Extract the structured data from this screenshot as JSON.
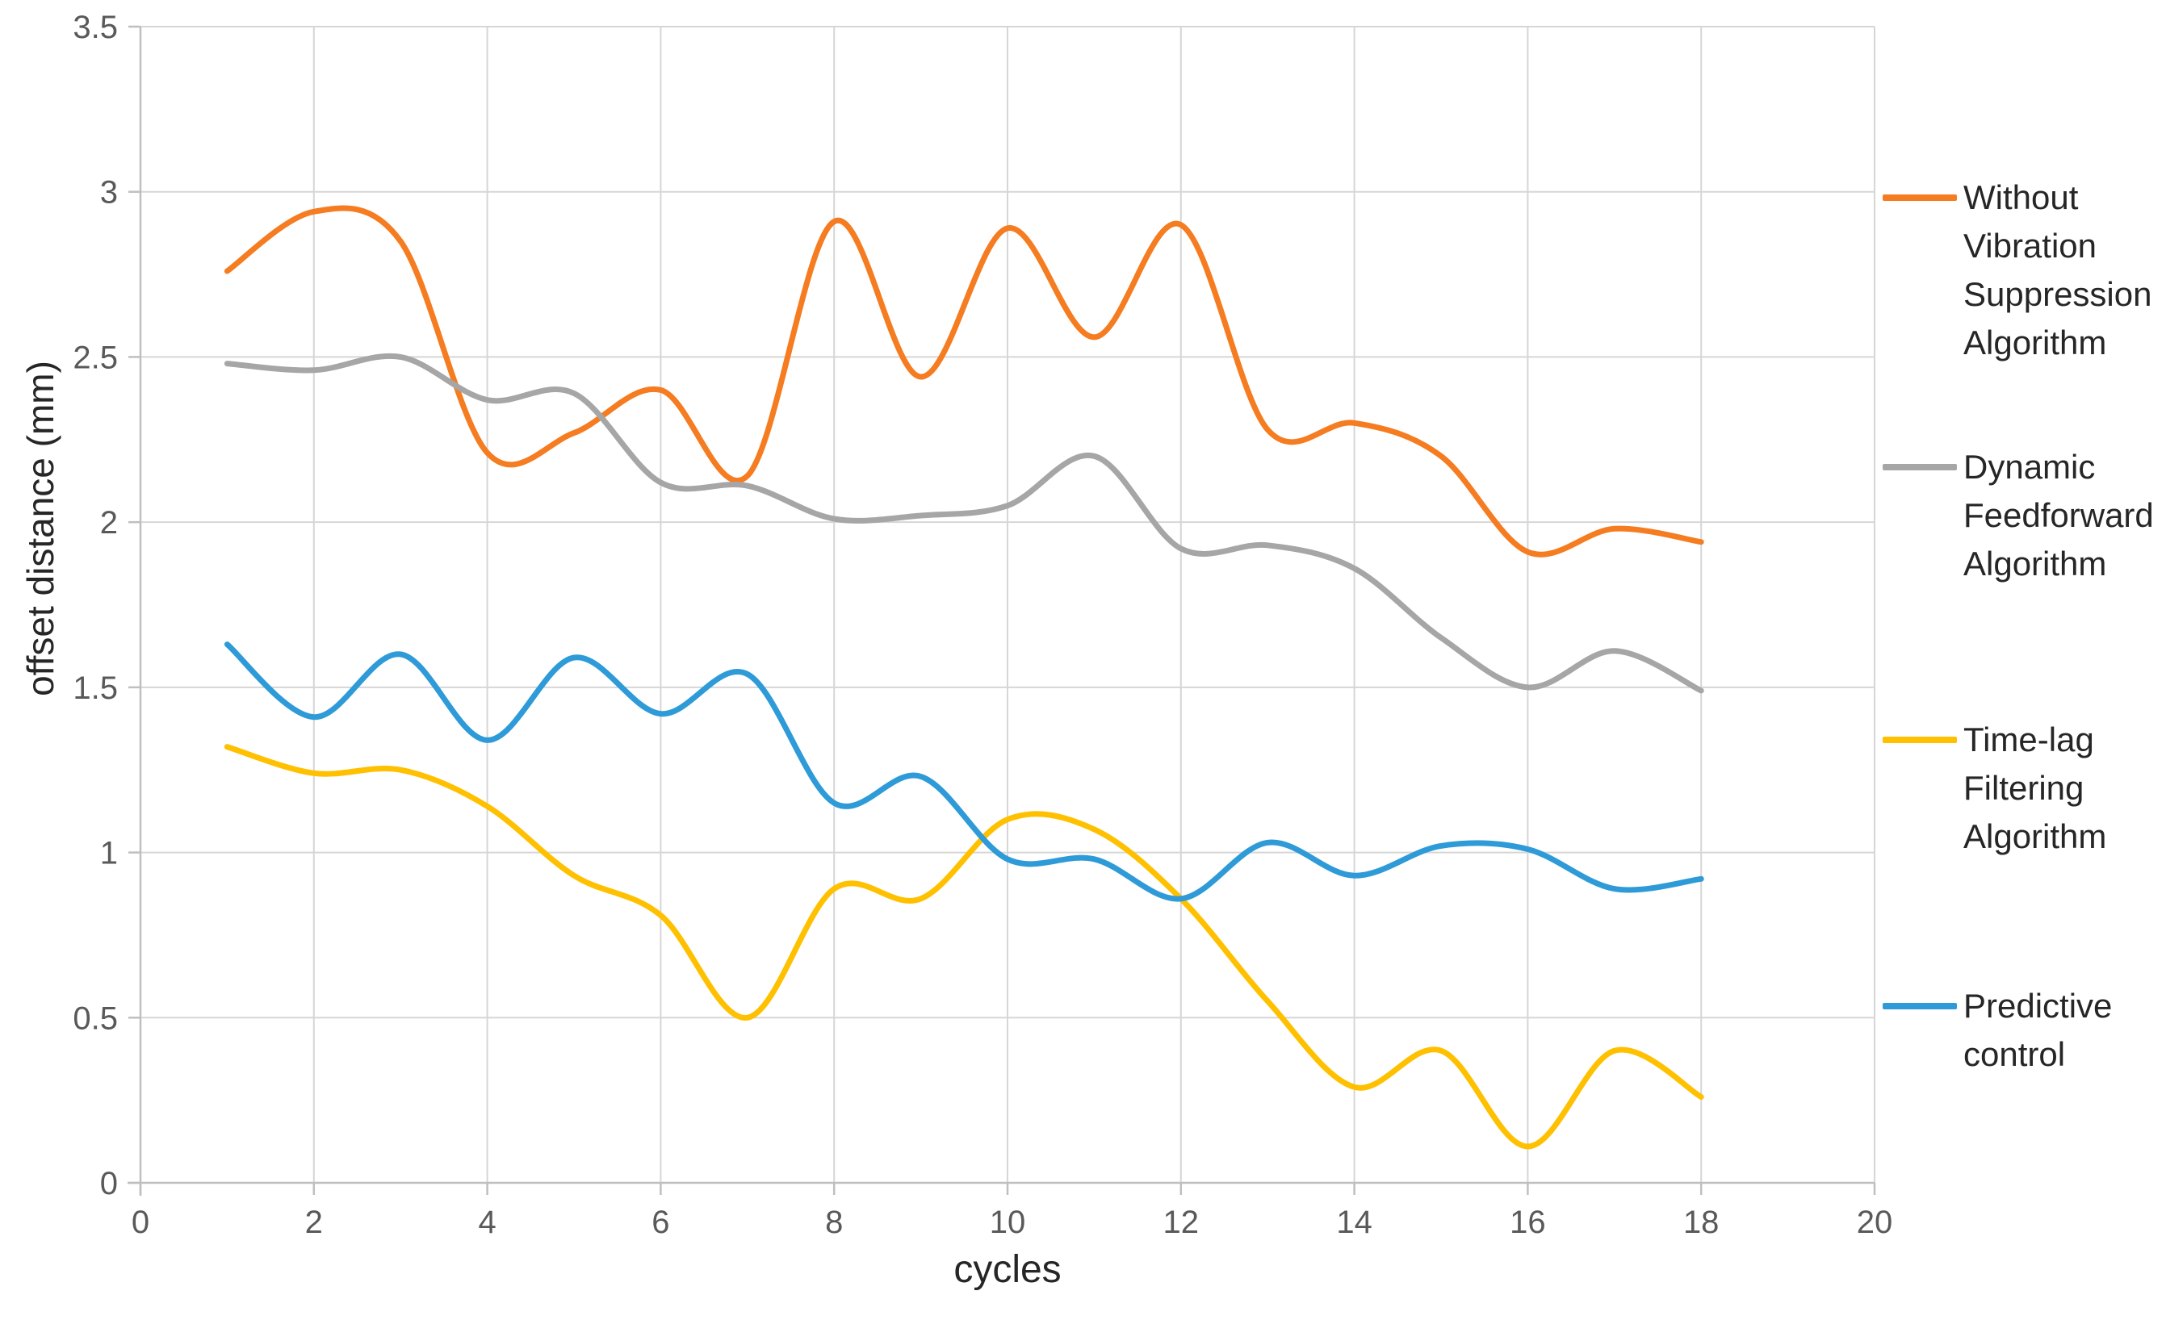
{
  "chart_data": {
    "type": "line",
    "title": "",
    "xlabel": "cycles",
    "ylabel": "offset distance (mm)",
    "xlim": [
      0,
      20
    ],
    "ylim": [
      0,
      3.5
    ],
    "x_ticks": [
      0,
      2,
      4,
      6,
      8,
      10,
      12,
      14,
      16,
      18,
      20
    ],
    "x_tick_labels": [
      "0",
      "2",
      "4",
      "6",
      "8",
      "10",
      "12",
      "14",
      "16",
      "18",
      "20"
    ],
    "y_ticks": [
      0,
      0.5,
      1,
      1.5,
      2,
      2.5,
      3,
      3.5
    ],
    "y_tick_labels": [
      "0",
      "0.5",
      "1",
      "1.5",
      "2",
      "2.5",
      "3",
      "3.5"
    ],
    "grid": true,
    "smooth": true,
    "legend_position": "right",
    "x": [
      1,
      2,
      3,
      4,
      5,
      6,
      7,
      8,
      9,
      10,
      11,
      12,
      13,
      14,
      15,
      16,
      17,
      18
    ],
    "series": [
      {
        "name": "Without Vibration Suppression Algorithm",
        "label_lines": [
          "Without",
          "Vibration",
          "Suppression",
          "Algorithm"
        ],
        "color": "#F57C20",
        "values": [
          2.76,
          2.94,
          2.85,
          2.21,
          2.27,
          2.4,
          2.14,
          2.91,
          2.44,
          2.89,
          2.56,
          2.9,
          2.28,
          2.3,
          2.2,
          1.91,
          1.98,
          1.94
        ]
      },
      {
        "name": "Dynamic Feedforward Algorithm",
        "label_lines": [
          "Dynamic",
          "Feedforward",
          "Algorithm"
        ],
        "color": "#A6A6A6",
        "values": [
          2.48,
          2.46,
          2.5,
          2.37,
          2.39,
          2.12,
          2.11,
          2.01,
          2.02,
          2.05,
          2.2,
          1.92,
          1.93,
          1.86,
          1.65,
          1.5,
          1.61,
          1.49
        ]
      },
      {
        "name": "Time-lag Filtering Algorithm",
        "label_lines": [
          "Time-lag",
          "Filtering",
          "Algorithm"
        ],
        "color": "#FFC000",
        "values": [
          1.32,
          1.24,
          1.25,
          1.14,
          0.93,
          0.81,
          0.5,
          0.89,
          0.86,
          1.1,
          1.07,
          0.86,
          0.55,
          0.29,
          0.4,
          0.11,
          0.4,
          0.26
        ]
      },
      {
        "name": "Predictive control",
        "label_lines": [
          "Predictive",
          "control"
        ],
        "color": "#2E9BD8",
        "values": [
          1.63,
          1.41,
          1.6,
          1.34,
          1.59,
          1.42,
          1.54,
          1.15,
          1.23,
          0.98,
          0.98,
          0.86,
          1.03,
          0.93,
          1.02,
          1.01,
          0.89,
          0.92
        ]
      }
    ],
    "colors": {
      "gridline": "#D6D6D6",
      "axis_line": "#BFBFBF",
      "tick_label": "#595959",
      "text": "#262626",
      "background": "#FFFFFF"
    }
  }
}
